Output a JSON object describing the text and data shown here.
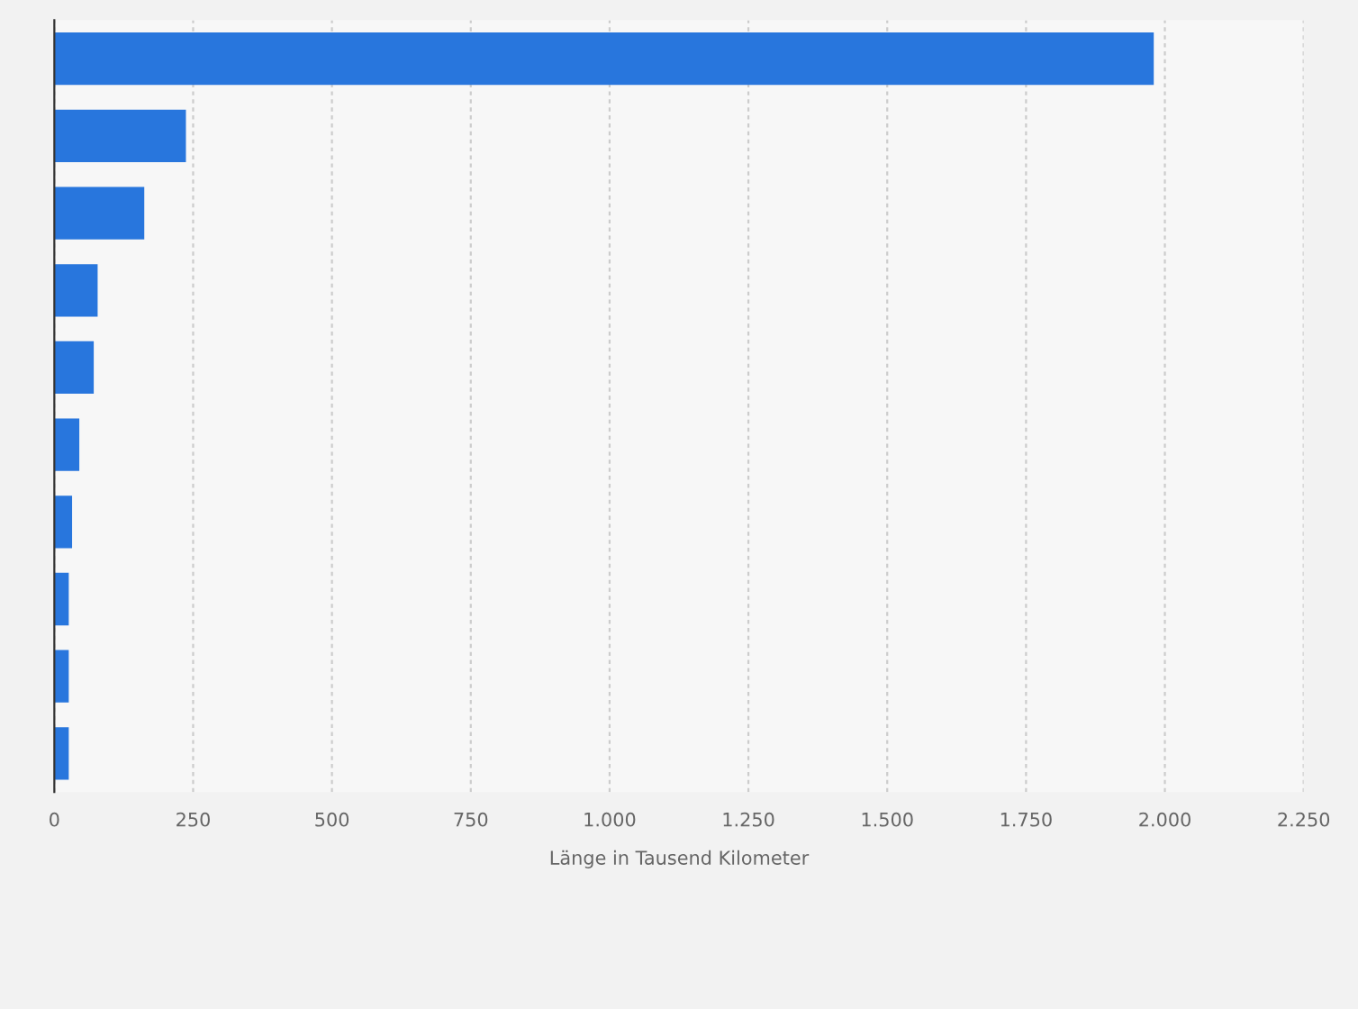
{
  "chart_data": {
    "type": "bar",
    "orientation": "horizontal",
    "xlabel": "Länge in Tausend Kilometer",
    "categories": [
      null,
      null,
      null,
      null,
      null,
      null,
      null,
      null,
      null,
      null
    ],
    "values": [
      1980,
      237,
      162,
      78,
      71,
      45,
      32,
      26,
      26,
      26
    ],
    "color": "#2876dd",
    "xlim": [
      0,
      2250
    ],
    "xticks": [
      0,
      250,
      500,
      750,
      {
        "value": 1000,
        "label": "1.000"
      },
      {
        "value": 1250,
        "label": "1.250"
      },
      {
        "value": 1500,
        "label": "1.500"
      },
      {
        "value": 1750,
        "label": "1.750"
      },
      {
        "value": 2000,
        "label": "2.000"
      },
      {
        "value": 2250,
        "label": "2.250"
      }
    ],
    "grid": "x",
    "tick_labels": "x"
  }
}
